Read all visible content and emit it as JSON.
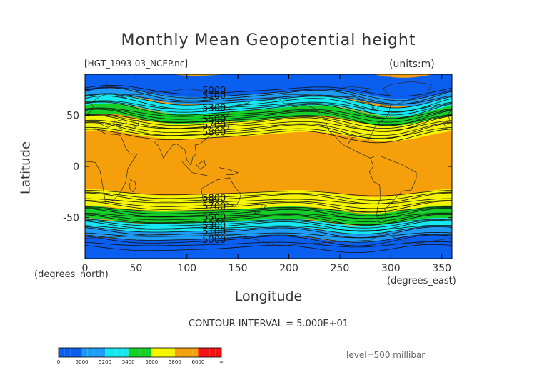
{
  "chart_data": {
    "type": "contour",
    "title": "Monthly Mean Geopotential height",
    "file_label": "[HGT_1993-03_NCEP.nc]",
    "units_label": "(units:m)",
    "xlabel": "Longitude",
    "ylabel": "Latitude",
    "x_unit": "(degrees_east)",
    "y_unit": "(degrees_north)",
    "xlim": [
      0,
      360
    ],
    "ylim": [
      -90,
      90
    ],
    "x_ticks": [
      0,
      50,
      100,
      150,
      200,
      250,
      300,
      350
    ],
    "y_ticks": [
      -50,
      0,
      50
    ],
    "contour_interval_text": "CONTOUR INTERVAL = 5.000E+01",
    "level_text": "level=500 millibar",
    "contour_labels": [
      {
        "lat": 74,
        "text": "5000"
      },
      {
        "lat": 69,
        "text": "5100"
      },
      {
        "lat": 57,
        "text": "5300"
      },
      {
        "lat": 46,
        "text": "5500"
      },
      {
        "lat": 40,
        "text": "5700"
      },
      {
        "lat": 33,
        "text": "5800"
      },
      {
        "lat": -31,
        "text": "5800"
      },
      {
        "lat": -39,
        "text": "5700"
      },
      {
        "lat": -50,
        "text": "5500"
      },
      {
        "lat": -58,
        "text": "5300"
      },
      {
        "lat": -64,
        "text": "5100"
      },
      {
        "lat": -72,
        "text": "5000"
      }
    ],
    "colorbar": {
      "boundary_labels": [
        "0",
        "5000",
        "5200",
        "5400",
        "5600",
        "5800",
        "6000",
        "∞"
      ],
      "colors": [
        "#0a5ff0",
        "#1e9bf5",
        "#14e8f2",
        "#14d028",
        "#f5f500",
        "#f5a00a",
        "#f51414"
      ]
    }
  }
}
